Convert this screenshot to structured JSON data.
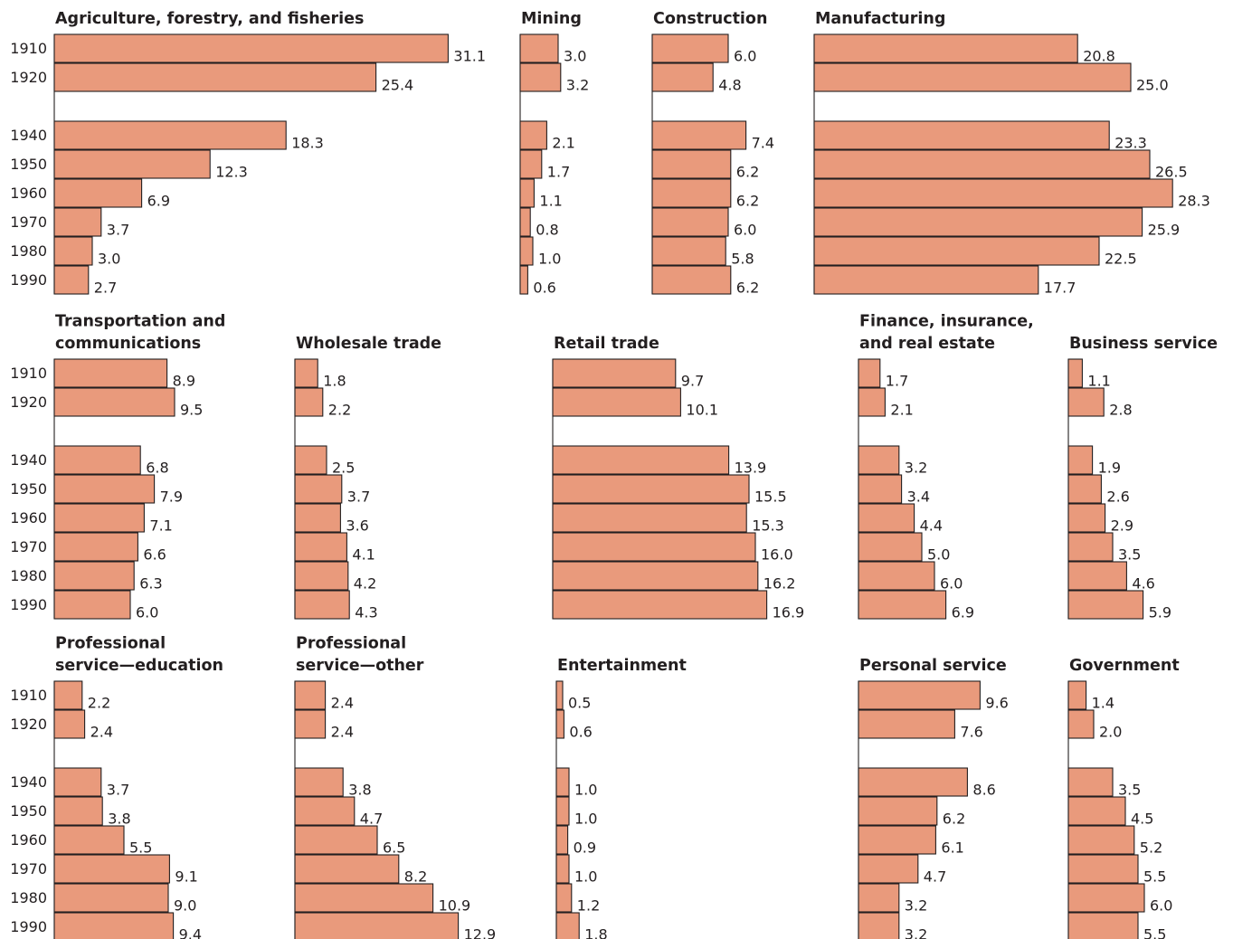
{
  "chart_data": {
    "type": "bar",
    "orientation": "horizontal",
    "bar_color": "#e99a7c",
    "stroke_color": "#231f20",
    "categories": [
      "1910",
      "1920",
      "1940",
      "1950",
      "1960",
      "1970",
      "1980",
      "1990"
    ],
    "panels": [
      {
        "title": [
          "Agriculture, forestry, and fisheries"
        ],
        "values": [
          31.1,
          25.4,
          18.3,
          12.3,
          6.9,
          3.7,
          3.0,
          2.7
        ],
        "labels": [
          "31.1",
          "25.4",
          "18.3",
          "12.3",
          "6.9",
          "3.7",
          "3.0",
          "2.7"
        ]
      },
      {
        "title": [
          "Mining"
        ],
        "values": [
          3.0,
          3.2,
          2.1,
          1.7,
          1.1,
          0.8,
          1.0,
          0.6
        ],
        "labels": [
          "3.0",
          "3.2",
          "2.1",
          "1.7",
          "1.1",
          "0.8",
          "1.0",
          "0.6"
        ]
      },
      {
        "title": [
          "Construction"
        ],
        "values": [
          6.0,
          4.8,
          7.4,
          6.2,
          6.2,
          6.0,
          5.8,
          6.2
        ],
        "labels": [
          "6.0",
          "4.8",
          "7.4",
          "6.2",
          "6.2",
          "6.0",
          "5.8",
          "6.2"
        ]
      },
      {
        "title": [
          "Manufacturing"
        ],
        "values": [
          20.8,
          25.0,
          23.3,
          26.5,
          28.3,
          25.9,
          22.5,
          17.7
        ],
        "labels": [
          "20.8",
          "25.0",
          "23.3",
          "26.5",
          "28.3",
          "25.9",
          "22.5",
          "17.7"
        ]
      },
      {
        "title": [
          "Transportation and",
          "communications"
        ],
        "values": [
          8.9,
          9.5,
          6.8,
          7.9,
          7.1,
          6.6,
          6.3,
          6.0
        ],
        "labels": [
          "8.9",
          "9.5",
          "6.8",
          "7.9",
          "7.1",
          "6.6",
          "6.3",
          "6.0"
        ]
      },
      {
        "title": [
          "Wholesale trade"
        ],
        "values": [
          1.8,
          2.2,
          2.5,
          3.7,
          3.6,
          4.1,
          4.2,
          4.3
        ],
        "labels": [
          "1.8",
          "2.2",
          "2.5",
          "3.7",
          "3.6",
          "4.1",
          "4.2",
          "4.3"
        ]
      },
      {
        "title": [
          "Retail trade"
        ],
        "values": [
          9.7,
          10.1,
          13.9,
          15.5,
          15.3,
          16.0,
          16.2,
          16.9
        ],
        "labels": [
          "9.7",
          "10.1",
          "13.9",
          "15.5",
          "15.3",
          "16.0",
          "16.2",
          "16.9"
        ]
      },
      {
        "title": [
          "Finance, insurance,",
          "and real estate"
        ],
        "values": [
          1.7,
          2.1,
          3.2,
          3.4,
          4.4,
          5.0,
          6.0,
          6.9
        ],
        "labels": [
          "1.7",
          "2.1",
          "3.2",
          "3.4",
          "4.4",
          "5.0",
          "6.0",
          "6.9"
        ]
      },
      {
        "title": [
          "Business service"
        ],
        "values": [
          1.1,
          2.8,
          1.9,
          2.6,
          2.9,
          3.5,
          4.6,
          5.9
        ],
        "labels": [
          "1.1",
          "2.8",
          "1.9",
          "2.6",
          "2.9",
          "3.5",
          "4.6",
          "5.9"
        ]
      },
      {
        "title": [
          "Professional",
          "service—education"
        ],
        "values": [
          2.2,
          2.4,
          3.7,
          3.8,
          5.5,
          9.1,
          9.0,
          9.4
        ],
        "labels": [
          "2.2",
          "2.4",
          "3.7",
          "3.8",
          "5.5",
          "9.1",
          "9.0",
          "9.4"
        ]
      },
      {
        "title": [
          "Professional",
          "service—other"
        ],
        "values": [
          2.4,
          2.4,
          3.8,
          4.7,
          6.5,
          8.2,
          10.9,
          12.9
        ],
        "labels": [
          "2.4",
          "2.4",
          "3.8",
          "4.7",
          "6.5",
          "8.2",
          "10.9",
          "12.9"
        ]
      },
      {
        "title": [
          "Entertainment"
        ],
        "values": [
          0.5,
          0.6,
          1.0,
          1.0,
          0.9,
          1.0,
          1.2,
          1.8
        ],
        "labels": [
          "0.5",
          "0.6",
          "1.0",
          "1.0",
          "0.9",
          "1.0",
          "1.2",
          "1.8"
        ]
      },
      {
        "title": [
          "Personal service"
        ],
        "values": [
          9.6,
          7.6,
          8.6,
          6.2,
          6.1,
          4.7,
          3.2,
          3.2
        ],
        "labels": [
          "9.6",
          "7.6",
          "8.6",
          "6.2",
          "6.1",
          "4.7",
          "3.2",
          "3.2"
        ]
      },
      {
        "title": [
          "Government"
        ],
        "values": [
          1.4,
          2.0,
          3.5,
          4.5,
          5.2,
          5.5,
          6.0,
          5.5
        ],
        "labels": [
          "1.4",
          "2.0",
          "3.5",
          "4.5",
          "5.2",
          "5.5",
          "6.0",
          "5.5"
        ]
      }
    ]
  }
}
